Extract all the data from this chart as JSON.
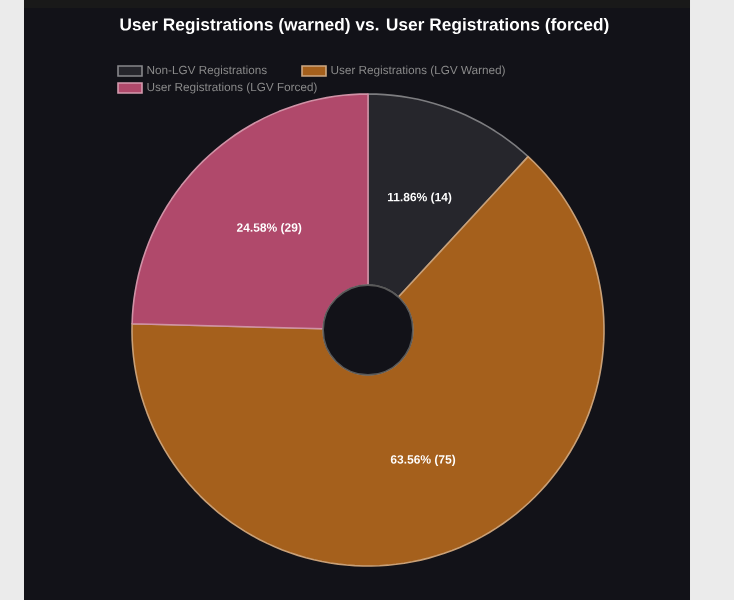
{
  "chart_data": {
    "type": "donut",
    "title": "User Registrations (warned) vs. User Registrations (forced)",
    "categories": [
      "Non-LGV Registrations",
      "User Registrations (LGV Warned)",
      "User Registrations (LGV Forced)"
    ],
    "values": [
      14,
      75,
      29
    ],
    "value_labels": [
      "11.86% (14)",
      "63.56% (75)",
      "24.58% (29)"
    ],
    "colors": [
      "#26262c",
      "#a5601c",
      "#b0496b"
    ],
    "legend": "top"
  }
}
